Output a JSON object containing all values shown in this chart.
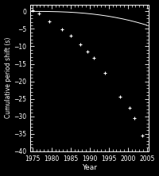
{
  "title": "",
  "xlabel": "Year",
  "ylabel": "Cumulative period shift (s)",
  "bg_color": "#000000",
  "curve_color": "#ffffff",
  "data_color": "#ffffff",
  "xlim": [
    1974.5,
    2005.5
  ],
  "ylim": [
    -40,
    2
  ],
  "xticks": [
    1975,
    1980,
    1985,
    1990,
    1995,
    2000,
    2005
  ],
  "yticks": [
    0,
    -5,
    -10,
    -15,
    -20,
    -25,
    -30,
    -35,
    -40
  ],
  "data_points": [
    [
      1975.0,
      0.3
    ],
    [
      1976.8,
      -0.5
    ],
    [
      1979.5,
      -2.8
    ],
    [
      1982.8,
      -5.2
    ],
    [
      1985.0,
      -7.0
    ],
    [
      1987.5,
      -9.5
    ],
    [
      1989.5,
      -11.5
    ],
    [
      1991.0,
      -13.2
    ],
    [
      1994.0,
      -17.5
    ],
    [
      1998.0,
      -24.5
    ],
    [
      2000.5,
      -27.5
    ],
    [
      2001.8,
      -30.5
    ],
    [
      2003.8,
      -35.5
    ]
  ],
  "curve_start": 1974.5,
  "curve_end": 2005.0,
  "curve_a": -0.000152,
  "curve_b": 0.548,
  "curve_c": -492.5,
  "figsize": [
    2.0,
    2.22
  ],
  "dpi": 100
}
